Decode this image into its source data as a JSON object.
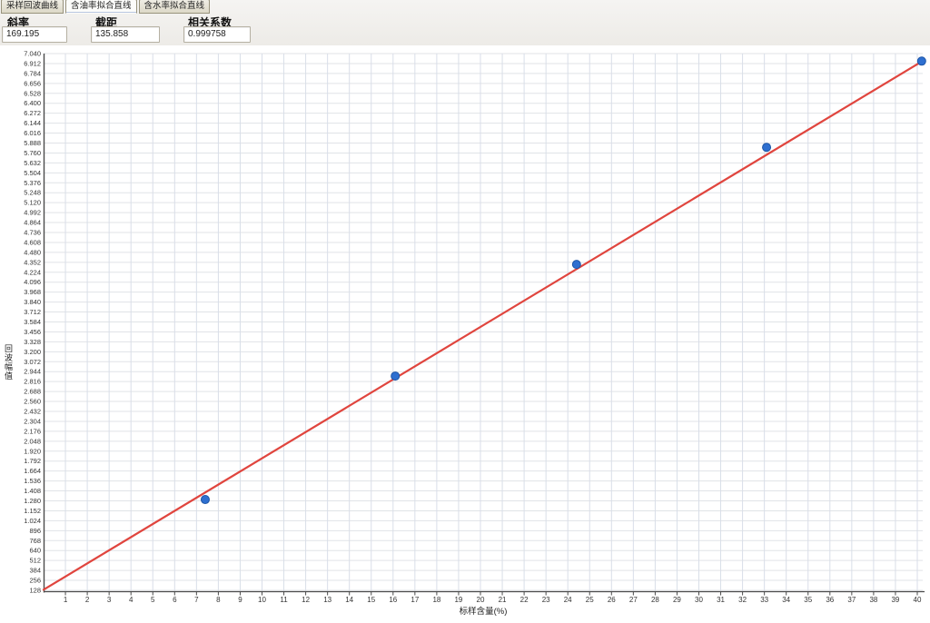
{
  "tabs": [
    {
      "label": "采样回波曲线",
      "active": false
    },
    {
      "label": "含油率拟合直线",
      "active": true
    },
    {
      "label": "含水率拟合直线",
      "active": false
    }
  ],
  "fields": [
    {
      "label": "斜率",
      "value": "169.195"
    },
    {
      "label": "截距",
      "value": "135.858"
    },
    {
      "label": "相关系数",
      "value": "0.999758"
    }
  ],
  "chart_data": {
    "type": "scatter",
    "title": "",
    "xlabel": "标样含量(%)",
    "ylabel": "回波幅值",
    "xlim": [
      0,
      40.5
    ],
    "ylim": [
      128,
      7040
    ],
    "x_tick_step": 1,
    "y_tick_step": 128,
    "x_ticks": [
      1,
      2,
      3,
      4,
      5,
      6,
      7,
      8,
      9,
      10,
      11,
      12,
      13,
      14,
      15,
      16,
      17,
      18,
      19,
      20,
      21,
      22,
      23,
      24,
      25,
      26,
      27,
      28,
      29,
      30,
      31,
      32,
      33,
      34,
      35,
      36,
      37,
      38,
      39,
      40
    ],
    "y_tick_labels": [
      "128",
      "256",
      "384",
      "512",
      "640",
      "768",
      "896",
      "1.024",
      "1.152",
      "1.280",
      "1.408",
      "1.536",
      "1.664",
      "1.792",
      "1.920",
      "2.048",
      "2.176",
      "2.304",
      "2.432",
      "2.560",
      "2.688",
      "2.816",
      "2.944",
      "3.072",
      "3.200",
      "3.328",
      "3.456",
      "3.584",
      "3.712",
      "3.840",
      "3.968",
      "4.096",
      "4.224",
      "4.352",
      "4.480",
      "4.608",
      "4.736",
      "4.864",
      "4.992",
      "5.120",
      "5.248",
      "5.376",
      "5.504",
      "5.632",
      "5.760",
      "5.888",
      "6.016",
      "6.144",
      "6.272",
      "6.400",
      "6.528",
      "6.656",
      "6.784",
      "6.912",
      "7.040"
    ],
    "grid": true,
    "legend": "none",
    "points": [
      {
        "x": 7.4,
        "y": 1297
      },
      {
        "x": 16.1,
        "y": 2887
      },
      {
        "x": 24.4,
        "y": 4325
      },
      {
        "x": 33.1,
        "y": 5833
      },
      {
        "x": 40.2,
        "y": 6943
      }
    ],
    "fit_line": {
      "slope": 169.195,
      "intercept": 135.858,
      "x_start": 0,
      "x_end": 40.2
    },
    "colors": {
      "fit_line": "#e0453e",
      "point_fill": "#2e6fd0",
      "point_stroke": "#1d55a6",
      "grid_horizontal": "#e0e3e7",
      "grid_vertical": "#d9dee8",
      "axis": "#4b4b4b",
      "tick_text": "#333333"
    }
  }
}
